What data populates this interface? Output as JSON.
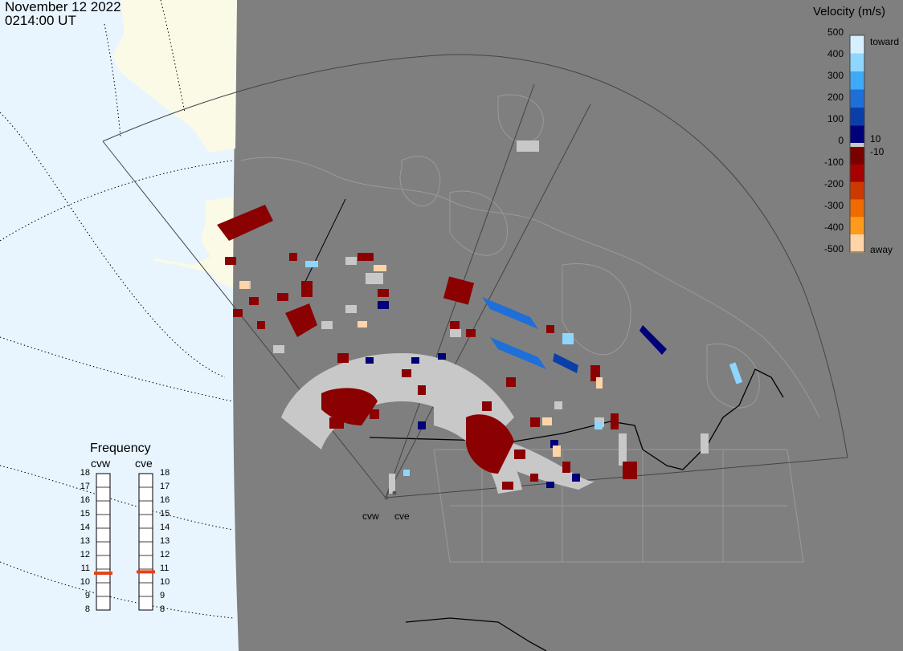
{
  "header": {
    "date": "November 12 2022",
    "time": "0214:00 UT"
  },
  "velocity_scale": {
    "title": "Velocity (m/s)",
    "ticks": [
      "500",
      "400",
      "300",
      "200",
      "100",
      "0",
      "-100",
      "-200",
      "-300",
      "-400",
      "-500"
    ],
    "toward_label": "toward",
    "away_label": "away",
    "pos_threshold": "10",
    "neg_threshold": "-10",
    "colors": [
      "#d6f0ff",
      "#8ed6ff",
      "#3eaaf5",
      "#1f6fd8",
      "#0b3fa8",
      "#00007a",
      "#7a0000",
      "#a60000",
      "#cc3a00",
      "#ef6a00",
      "#ff9a1a",
      "#ffd5a8"
    ]
  },
  "frequency": {
    "title": "Frequency",
    "radars": [
      "cvw",
      "cve"
    ],
    "mhz_levels": [
      "8",
      "9",
      "10",
      "11",
      "12",
      "13",
      "14",
      "15",
      "16",
      "17",
      "18"
    ],
    "cvw_mhz": 10.7,
    "cve_mhz": 10.8,
    "marker_color": "#e2421a"
  },
  "radar_sites": {
    "cvw": "cvw",
    "cve": "cve"
  },
  "colors": {
    "night": "#7f7f7f",
    "day_ocean": "#e8f5ff",
    "day_land": "#fafae6",
    "ground_scatter": "#c8c8c8",
    "border": "#000000"
  }
}
